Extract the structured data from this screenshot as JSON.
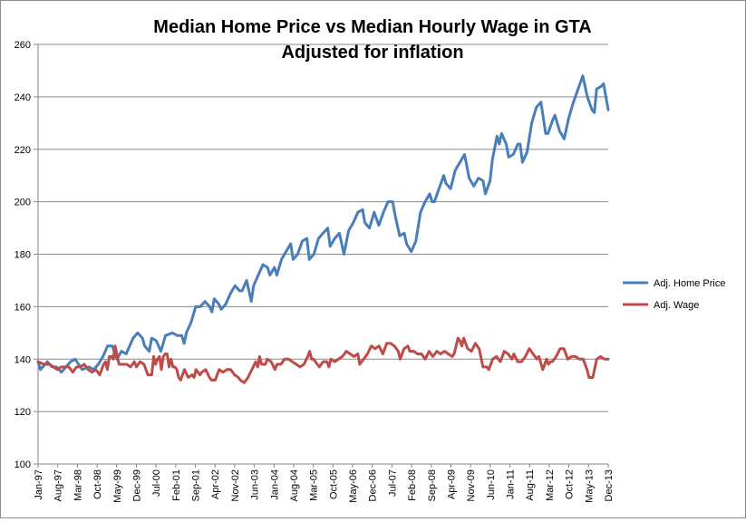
{
  "chart_data": {
    "type": "line",
    "title": "Median Home Price vs Median Hourly Wage in GTA",
    "subtitle": "Adjusted for inflation",
    "xlabel": "",
    "ylabel": "",
    "ylim": [
      100,
      260
    ],
    "yticks": [
      100,
      120,
      140,
      160,
      180,
      200,
      220,
      240,
      260
    ],
    "grid": "horizontal",
    "legend_position": "right",
    "x_tick_labels": [
      "Jan-97",
      "Aug-97",
      "Mar-98",
      "Oct-98",
      "May-99",
      "Dec-99",
      "Jul-00",
      "Feb-01",
      "Sep-01",
      "Apr-02",
      "Nov-02",
      "Jun-03",
      "Jan-04",
      "Aug-04",
      "Mar-05",
      "Oct-05",
      "May-06",
      "Dec-06",
      "Jul-07",
      "Feb-08",
      "Sep-08",
      "Apr-09",
      "Nov-09",
      "Jun-10",
      "Jan-11",
      "Aug-11",
      "Mar-12",
      "Oct-12",
      "May-13",
      "Dec-13"
    ],
    "series": [
      {
        "name": "Adj. Home Price",
        "color": "#4a7ebb",
        "anchors": [
          [
            0,
            139
          ],
          [
            1,
            136
          ],
          [
            4,
            139
          ],
          [
            6,
            137
          ],
          [
            8,
            137
          ],
          [
            10,
            135
          ],
          [
            14,
            139
          ],
          [
            16,
            140
          ],
          [
            19,
            136
          ],
          [
            22,
            137
          ],
          [
            24,
            136
          ],
          [
            26,
            138
          ],
          [
            28,
            141
          ],
          [
            30,
            145
          ],
          [
            32,
            145
          ],
          [
            34,
            140
          ],
          [
            36,
            143
          ],
          [
            38,
            142
          ],
          [
            41,
            148
          ],
          [
            43,
            150
          ],
          [
            45,
            148
          ],
          [
            46,
            145
          ],
          [
            48,
            143
          ],
          [
            49,
            148
          ],
          [
            51,
            147
          ],
          [
            53,
            143
          ],
          [
            55,
            149
          ],
          [
            58,
            150
          ],
          [
            60,
            149
          ],
          [
            62,
            149
          ],
          [
            63,
            146
          ],
          [
            64,
            150
          ],
          [
            66,
            154
          ],
          [
            68,
            160
          ],
          [
            70,
            160
          ],
          [
            72,
            162
          ],
          [
            74,
            160
          ],
          [
            75,
            158
          ],
          [
            76,
            163
          ],
          [
            78,
            161
          ],
          [
            79,
            159
          ],
          [
            81,
            161
          ],
          [
            83,
            165
          ],
          [
            85,
            168
          ],
          [
            87,
            166
          ],
          [
            88,
            166
          ],
          [
            90,
            170
          ],
          [
            92,
            162
          ],
          [
            93,
            168
          ],
          [
            95,
            172
          ],
          [
            97,
            176
          ],
          [
            99,
            175
          ],
          [
            100,
            172
          ],
          [
            102,
            175
          ],
          [
            103,
            172
          ],
          [
            105,
            178
          ],
          [
            107,
            181
          ],
          [
            109,
            184
          ],
          [
            110,
            178
          ],
          [
            112,
            180
          ],
          [
            114,
            185
          ],
          [
            116,
            186
          ],
          [
            117,
            178
          ],
          [
            119,
            180
          ],
          [
            121,
            186
          ],
          [
            123,
            188
          ],
          [
            125,
            190
          ],
          [
            126,
            183
          ],
          [
            128,
            186
          ],
          [
            130,
            188
          ],
          [
            132,
            180
          ],
          [
            134,
            189
          ],
          [
            136,
            192
          ],
          [
            138,
            196
          ],
          [
            140,
            197
          ],
          [
            141,
            192
          ],
          [
            143,
            190
          ],
          [
            145,
            196
          ],
          [
            147,
            191
          ],
          [
            149,
            196
          ],
          [
            151,
            200
          ],
          [
            153,
            200
          ],
          [
            154,
            195
          ],
          [
            156,
            187
          ],
          [
            158,
            188
          ],
          [
            159,
            184
          ],
          [
            161,
            181
          ],
          [
            163,
            185
          ],
          [
            165,
            196
          ],
          [
            167,
            200
          ],
          [
            169,
            203
          ],
          [
            170,
            200
          ],
          [
            171,
            200
          ],
          [
            173,
            205
          ],
          [
            175,
            210
          ],
          [
            176,
            207
          ],
          [
            178,
            205
          ],
          [
            180,
            212
          ],
          [
            182,
            215
          ],
          [
            184,
            218
          ],
          [
            186,
            209
          ],
          [
            188,
            206
          ],
          [
            190,
            209
          ],
          [
            192,
            208
          ],
          [
            193,
            203
          ],
          [
            195,
            208
          ],
          [
            196,
            216
          ],
          [
            198,
            225
          ],
          [
            199,
            222
          ],
          [
            200,
            226
          ],
          [
            202,
            222
          ],
          [
            203,
            217
          ],
          [
            205,
            218
          ],
          [
            207,
            222
          ],
          [
            208,
            222
          ],
          [
            209,
            215
          ],
          [
            211,
            219
          ],
          [
            213,
            230
          ],
          [
            215,
            236
          ],
          [
            217,
            238
          ],
          [
            218,
            232
          ],
          [
            219,
            226
          ],
          [
            220,
            226
          ],
          [
            222,
            231
          ],
          [
            223,
            233
          ],
          [
            225,
            227
          ],
          [
            227,
            224
          ],
          [
            229,
            232
          ],
          [
            231,
            238
          ],
          [
            233,
            243
          ],
          [
            235,
            248
          ],
          [
            237,
            240
          ],
          [
            239,
            235
          ],
          [
            240,
            234
          ],
          [
            241,
            243
          ],
          [
            243,
            244
          ],
          [
            244,
            245
          ],
          [
            246,
            235
          ]
        ],
        "markers": false
      },
      {
        "name": "Adj. Wage",
        "color": "#be4b48",
        "anchors": [
          [
            0,
            139
          ],
          [
            3,
            138
          ],
          [
            6,
            138
          ],
          [
            8,
            137
          ],
          [
            10,
            136
          ],
          [
            12,
            137
          ],
          [
            14,
            137
          ],
          [
            16,
            137
          ],
          [
            18,
            135
          ],
          [
            20,
            137
          ],
          [
            22,
            137
          ],
          [
            24,
            138
          ],
          [
            26,
            136
          ],
          [
            28,
            135
          ],
          [
            30,
            136
          ],
          [
            32,
            134
          ],
          [
            34,
            138
          ],
          [
            35,
            139
          ],
          [
            36,
            136
          ],
          [
            37,
            141
          ],
          [
            38,
            141
          ],
          [
            39,
            140
          ],
          [
            40,
            145
          ],
          [
            42,
            138
          ],
          [
            46,
            138
          ],
          [
            48,
            137
          ],
          [
            50,
            139
          ],
          [
            51,
            137
          ],
          [
            53,
            139
          ],
          [
            55,
            138
          ],
          [
            57,
            134
          ],
          [
            59,
            134
          ],
          [
            60,
            141
          ],
          [
            61,
            138
          ],
          [
            62,
            140
          ],
          [
            63,
            141
          ],
          [
            64,
            136
          ],
          [
            65,
            141
          ],
          [
            66,
            142
          ],
          [
            67,
            142
          ],
          [
            68,
            137
          ],
          [
            69,
            140
          ],
          [
            70,
            137
          ],
          [
            71,
            137
          ],
          [
            72,
            136
          ],
          [
            73,
            133
          ],
          [
            74,
            132
          ],
          [
            76,
            136
          ],
          [
            78,
            133
          ],
          [
            80,
            134
          ],
          [
            81,
            133
          ],
          [
            82,
            136
          ],
          [
            84,
            134
          ],
          [
            85,
            135
          ],
          [
            87,
            136
          ],
          [
            89,
            133
          ],
          [
            90,
            132
          ],
          [
            92,
            132
          ],
          [
            94,
            136
          ],
          [
            96,
            135
          ],
          [
            98,
            136
          ],
          [
            100,
            136
          ],
          [
            102,
            134
          ],
          [
            104,
            133
          ],
          [
            105,
            132
          ],
          [
            107,
            131
          ],
          [
            109,
            133
          ],
          [
            111,
            136
          ],
          [
            113,
            139
          ],
          [
            114,
            137
          ],
          [
            115,
            141
          ],
          [
            116,
            138
          ],
          [
            118,
            138
          ],
          [
            119,
            140
          ],
          [
            121,
            139
          ],
          [
            123,
            136
          ],
          [
            124,
            138
          ],
          [
            126,
            138
          ],
          [
            128,
            140
          ],
          [
            130,
            140
          ],
          [
            132,
            139
          ],
          [
            134,
            138
          ],
          [
            136,
            137
          ],
          [
            138,
            138
          ],
          [
            140,
            141
          ],
          [
            141,
            143
          ],
          [
            142,
            140
          ],
          [
            143,
            140
          ],
          [
            145,
            138
          ],
          [
            146,
            137
          ],
          [
            148,
            139
          ],
          [
            150,
            139
          ],
          [
            151,
            137
          ],
          [
            152,
            140
          ],
          [
            154,
            139
          ],
          [
            156,
            140
          ],
          [
            158,
            141
          ],
          [
            160,
            143
          ],
          [
            162,
            142
          ],
          [
            164,
            141
          ],
          [
            166,
            142
          ],
          [
            167,
            138
          ],
          [
            169,
            140
          ],
          [
            171,
            142
          ],
          [
            173,
            145
          ],
          [
            175,
            144
          ],
          [
            177,
            145
          ],
          [
            179,
            142
          ],
          [
            181,
            146
          ],
          [
            183,
            146
          ],
          [
            185,
            145
          ],
          [
            187,
            143
          ],
          [
            188,
            140
          ],
          [
            190,
            144
          ],
          [
            192,
            145
          ],
          [
            193,
            143
          ],
          [
            195,
            143
          ],
          [
            197,
            142
          ],
          [
            199,
            142
          ],
          [
            201,
            140
          ],
          [
            203,
            143
          ],
          [
            205,
            141
          ],
          [
            207,
            143
          ],
          [
            209,
            142
          ],
          [
            211,
            143
          ],
          [
            213,
            142
          ],
          [
            215,
            141
          ],
          [
            216,
            142
          ],
          [
            218,
            148
          ],
          [
            219,
            147
          ],
          [
            220,
            145
          ],
          [
            221,
            148
          ],
          [
            223,
            144
          ],
          [
            225,
            143
          ],
          [
            227,
            146
          ],
          [
            229,
            144
          ],
          [
            231,
            137
          ],
          [
            233,
            137
          ],
          [
            234,
            136
          ],
          [
            236,
            140
          ],
          [
            238,
            141
          ],
          [
            240,
            139
          ],
          [
            242,
            143
          ],
          [
            244,
            142
          ],
          [
            246,
            140
          ],
          [
            247,
            142
          ],
          [
            249,
            139
          ],
          [
            251,
            139
          ],
          [
            253,
            141
          ],
          [
            255,
            144
          ],
          [
            257,
            142
          ],
          [
            259,
            140
          ],
          [
            260,
            141
          ],
          [
            262,
            136
          ],
          [
            264,
            140
          ],
          [
            265,
            138
          ],
          [
            266,
            139
          ],
          [
            267,
            139
          ],
          [
            269,
            141
          ],
          [
            271,
            144
          ],
          [
            273,
            144
          ],
          [
            275,
            140
          ],
          [
            277,
            141
          ],
          [
            279,
            141
          ],
          [
            281,
            140
          ],
          [
            283,
            140
          ],
          [
            285,
            136
          ],
          [
            286,
            133
          ],
          [
            288,
            133
          ],
          [
            290,
            140
          ],
          [
            292,
            141
          ],
          [
            294,
            140
          ],
          [
            296,
            140
          ]
        ],
        "markers": false
      }
    ]
  }
}
